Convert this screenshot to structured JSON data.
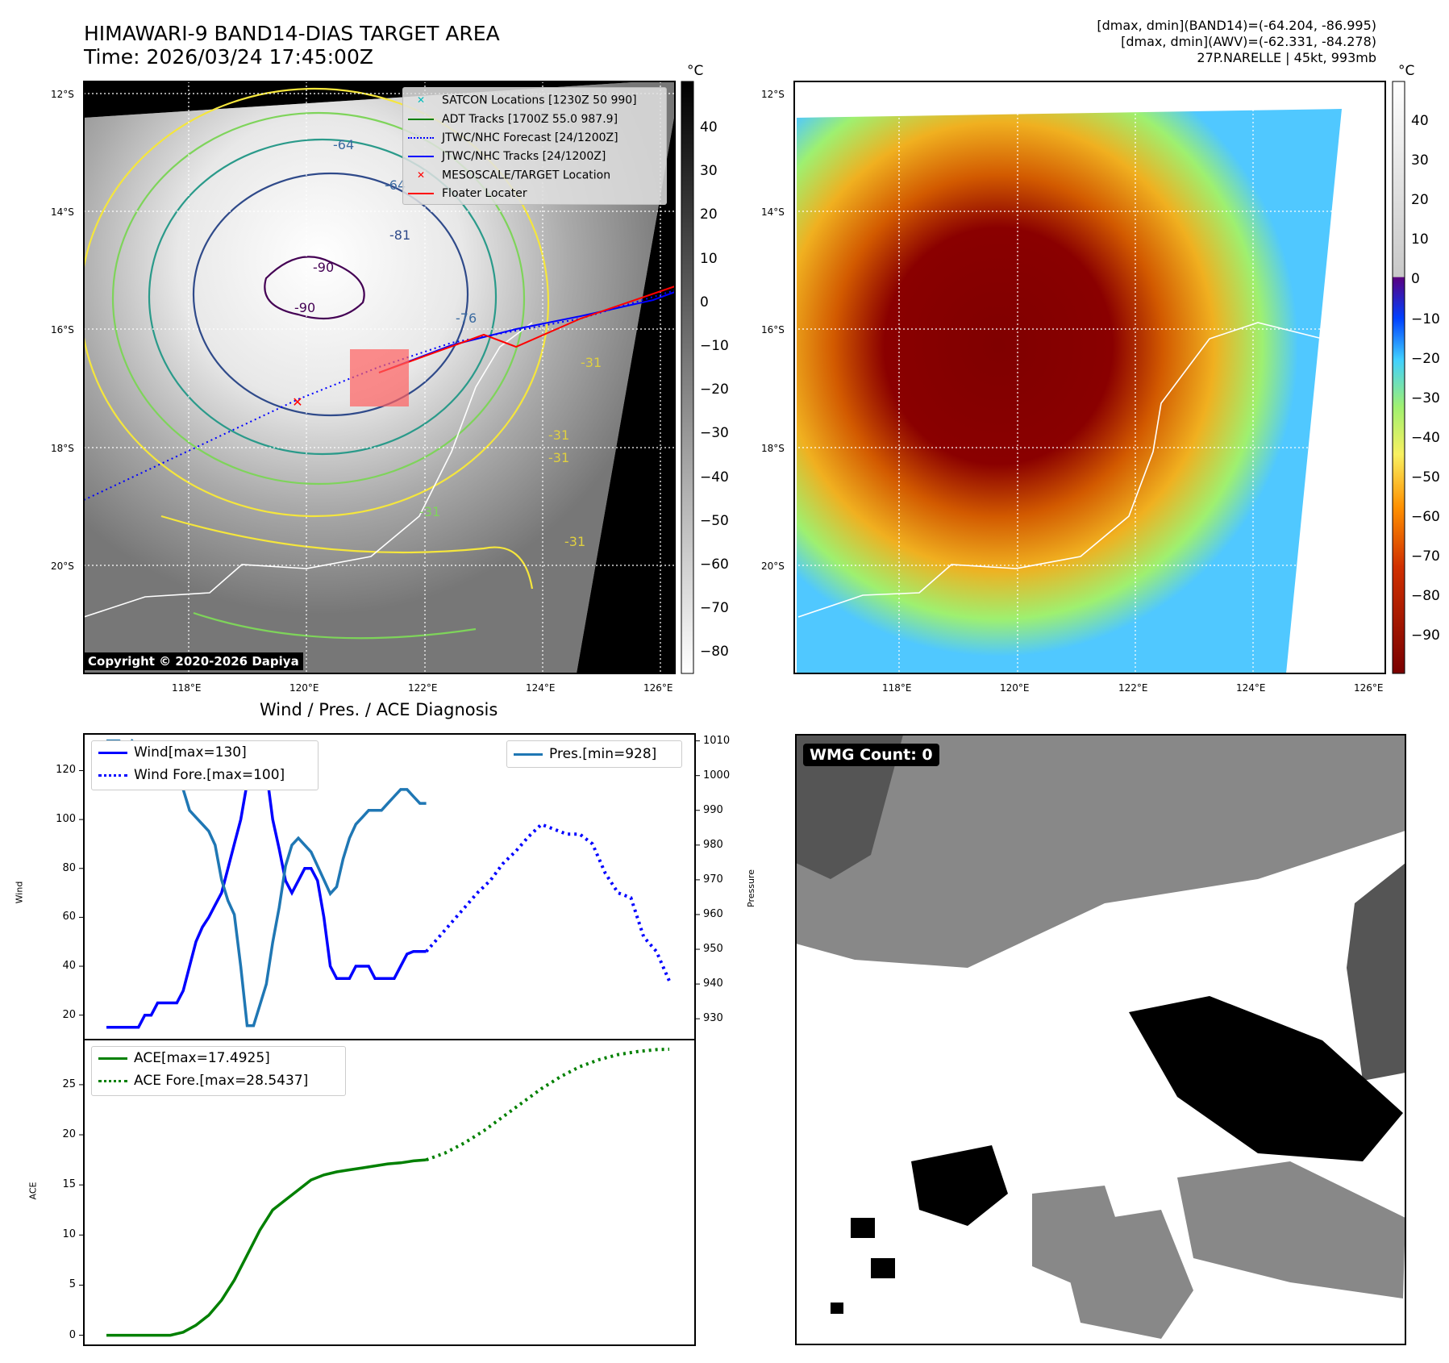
{
  "header": {
    "title_line1": "HIMAWARI-9 BAND14-DIAS TARGET AREA",
    "title_line2": "Time: 2026/03/24 17:45:00Z",
    "info_line1": "[dmax, dmin](BAND14)=(-64.204, -86.995)",
    "info_line2": "[dmax, dmin](AWV)=(-62.331, -84.278)",
    "info_line3": "27P.NARELLE | 45kt, 993mb"
  },
  "maps": {
    "unit_label": "°C",
    "lat_labels": [
      "12°S",
      "14°S",
      "16°S",
      "18°S",
      "20°S"
    ],
    "lon_labels": [
      "118°E",
      "120°E",
      "122°E",
      "124°E",
      "126°E"
    ],
    "copyright": "Copyright © 2020-2026 Dapiya",
    "contour_labels": [
      "-64",
      "-64",
      "-81",
      "-90",
      "-90",
      "-76",
      "-31",
      "-31",
      "-31",
      "-31",
      "-31"
    ],
    "legend": [
      {
        "label": "SATCON Locations [1230Z 50 990]",
        "color": "#00bcbc",
        "marker": "x"
      },
      {
        "label": "ADT Tracks [1700Z 55.0 987.9]",
        "color": "#008000",
        "marker": "line"
      },
      {
        "label": "JTWC/NHC Forecast [24/1200Z]",
        "color": "#0000ff",
        "marker": "dotted"
      },
      {
        "label": "JTWC/NHC Tracks [24/1200Z]",
        "color": "#0000ff",
        "marker": "dotline"
      },
      {
        "label": "MESOSCALE/TARGET Location",
        "color": "#ff0000",
        "marker": "x"
      },
      {
        "label": "Floater Locater",
        "color": "#ff0000",
        "marker": "line"
      }
    ],
    "ir_colorbar_ticks": [
      "40",
      "30",
      "20",
      "10",
      "0",
      "−10",
      "−20",
      "−30",
      "−40",
      "−50",
      "−60",
      "−70",
      "−80"
    ],
    "awv_colorbar_ticks": [
      "40",
      "30",
      "20",
      "10",
      "0",
      "−10",
      "−20",
      "−30",
      "−40",
      "−50",
      "−60",
      "−70",
      "−80",
      "−90"
    ]
  },
  "chart_data": [
    {
      "type": "line",
      "title": "Wind / Pres. / ACE Diagnosis",
      "ylabel": "Wind",
      "ylabel_right": "Pressure",
      "ylim": [
        10,
        135
      ],
      "ylim_right": [
        924,
        1012
      ],
      "yticks": [
        20,
        40,
        60,
        80,
        100,
        120
      ],
      "yticks_right": [
        930,
        940,
        950,
        960,
        970,
        980,
        990,
        1000,
        1010
      ],
      "series": [
        {
          "name": "Wind[max=130]",
          "color": "#0000ff",
          "style": "solid",
          "x": [
            0,
            1,
            2,
            3,
            4,
            5,
            6,
            7,
            8,
            9,
            10,
            11,
            12,
            13,
            14,
            15,
            16,
            17,
            18,
            19,
            20,
            21,
            22,
            23,
            24,
            25,
            26,
            27,
            28,
            29,
            30,
            31,
            32,
            33,
            34,
            35,
            36,
            37,
            38,
            39,
            40,
            41,
            42,
            43,
            44,
            45,
            46,
            47,
            48,
            49,
            50
          ],
          "values": [
            15,
            15,
            15,
            15,
            15,
            15,
            20,
            20,
            25,
            25,
            25,
            25,
            30,
            40,
            50,
            56,
            60,
            65,
            70,
            80,
            90,
            100,
            115,
            130,
            125,
            120,
            100,
            88,
            75,
            70,
            75,
            80,
            80,
            75,
            60,
            40,
            35,
            35,
            35,
            40,
            40,
            40,
            35,
            35,
            35,
            35,
            40,
            45,
            46,
            46,
            46
          ]
        },
        {
          "name": "Wind Fore.[max=100]",
          "color": "#0000ff",
          "style": "dotted",
          "x": [
            50,
            52,
            54,
            56,
            58,
            60,
            62,
            64,
            66,
            68,
            70,
            72,
            74,
            76,
            78,
            80,
            82,
            84,
            86,
            88
          ],
          "values": [
            46,
            52,
            58,
            64,
            70,
            75,
            82,
            87,
            93,
            98,
            96,
            94,
            94,
            90,
            78,
            70,
            68,
            52,
            46,
            34
          ]
        },
        {
          "name": "Pres.[min=928]",
          "color": "#1f77b4",
          "style": "solid",
          "axis": "right",
          "x": [
            0,
            1,
            2,
            3,
            4,
            5,
            6,
            7,
            8,
            9,
            10,
            11,
            12,
            13,
            14,
            15,
            16,
            17,
            18,
            19,
            20,
            21,
            22,
            23,
            24,
            25,
            26,
            27,
            28,
            29,
            30,
            31,
            32,
            33,
            34,
            35,
            36,
            37,
            38,
            39,
            40,
            41,
            42,
            43,
            44,
            45,
            46,
            47,
            48,
            49,
            50
          ],
          "values": [
            1010,
            1010,
            1010,
            1008,
            1010,
            1008,
            1006,
            1006,
            1006,
            1002,
            1000,
            998,
            996,
            990,
            988,
            986,
            984,
            980,
            970,
            964,
            960,
            945,
            928,
            928,
            934,
            940,
            952,
            962,
            974,
            980,
            982,
            980,
            978,
            974,
            970,
            966,
            968,
            976,
            982,
            986,
            988,
            990,
            990,
            990,
            992,
            994,
            996,
            996,
            994,
            992,
            992
          ]
        }
      ]
    },
    {
      "type": "line",
      "ylabel": "ACE",
      "ylim": [
        -1,
        29.5
      ],
      "yticks": [
        0,
        5,
        10,
        15,
        20,
        25
      ],
      "series": [
        {
          "name": "ACE[max=17.4925]",
          "color": "#008000",
          "style": "solid",
          "x": [
            0,
            2,
            4,
            6,
            8,
            10,
            12,
            14,
            16,
            18,
            20,
            22,
            24,
            26,
            28,
            30,
            32,
            34,
            36,
            38,
            40,
            42,
            44,
            46,
            48,
            50
          ],
          "values": [
            0,
            0,
            0,
            0,
            0,
            0,
            0.3,
            1,
            2,
            3.5,
            5.5,
            8,
            10.5,
            12.5,
            13.5,
            14.5,
            15.5,
            16,
            16.3,
            16.5,
            16.7,
            16.9,
            17.1,
            17.2,
            17.4,
            17.5
          ]
        },
        {
          "name": "ACE Fore.[max=28.5437]",
          "color": "#008000",
          "style": "dotted",
          "x": [
            50,
            53,
            56,
            59,
            62,
            65,
            68,
            71,
            74,
            77,
            80,
            83,
            86,
            88
          ],
          "values": [
            17.5,
            18.2,
            19.2,
            20.4,
            21.8,
            23.2,
            24.6,
            25.8,
            26.8,
            27.5,
            28,
            28.3,
            28.5,
            28.54
          ]
        }
      ]
    }
  ],
  "wmg": {
    "label": "WMG Count: 0"
  }
}
